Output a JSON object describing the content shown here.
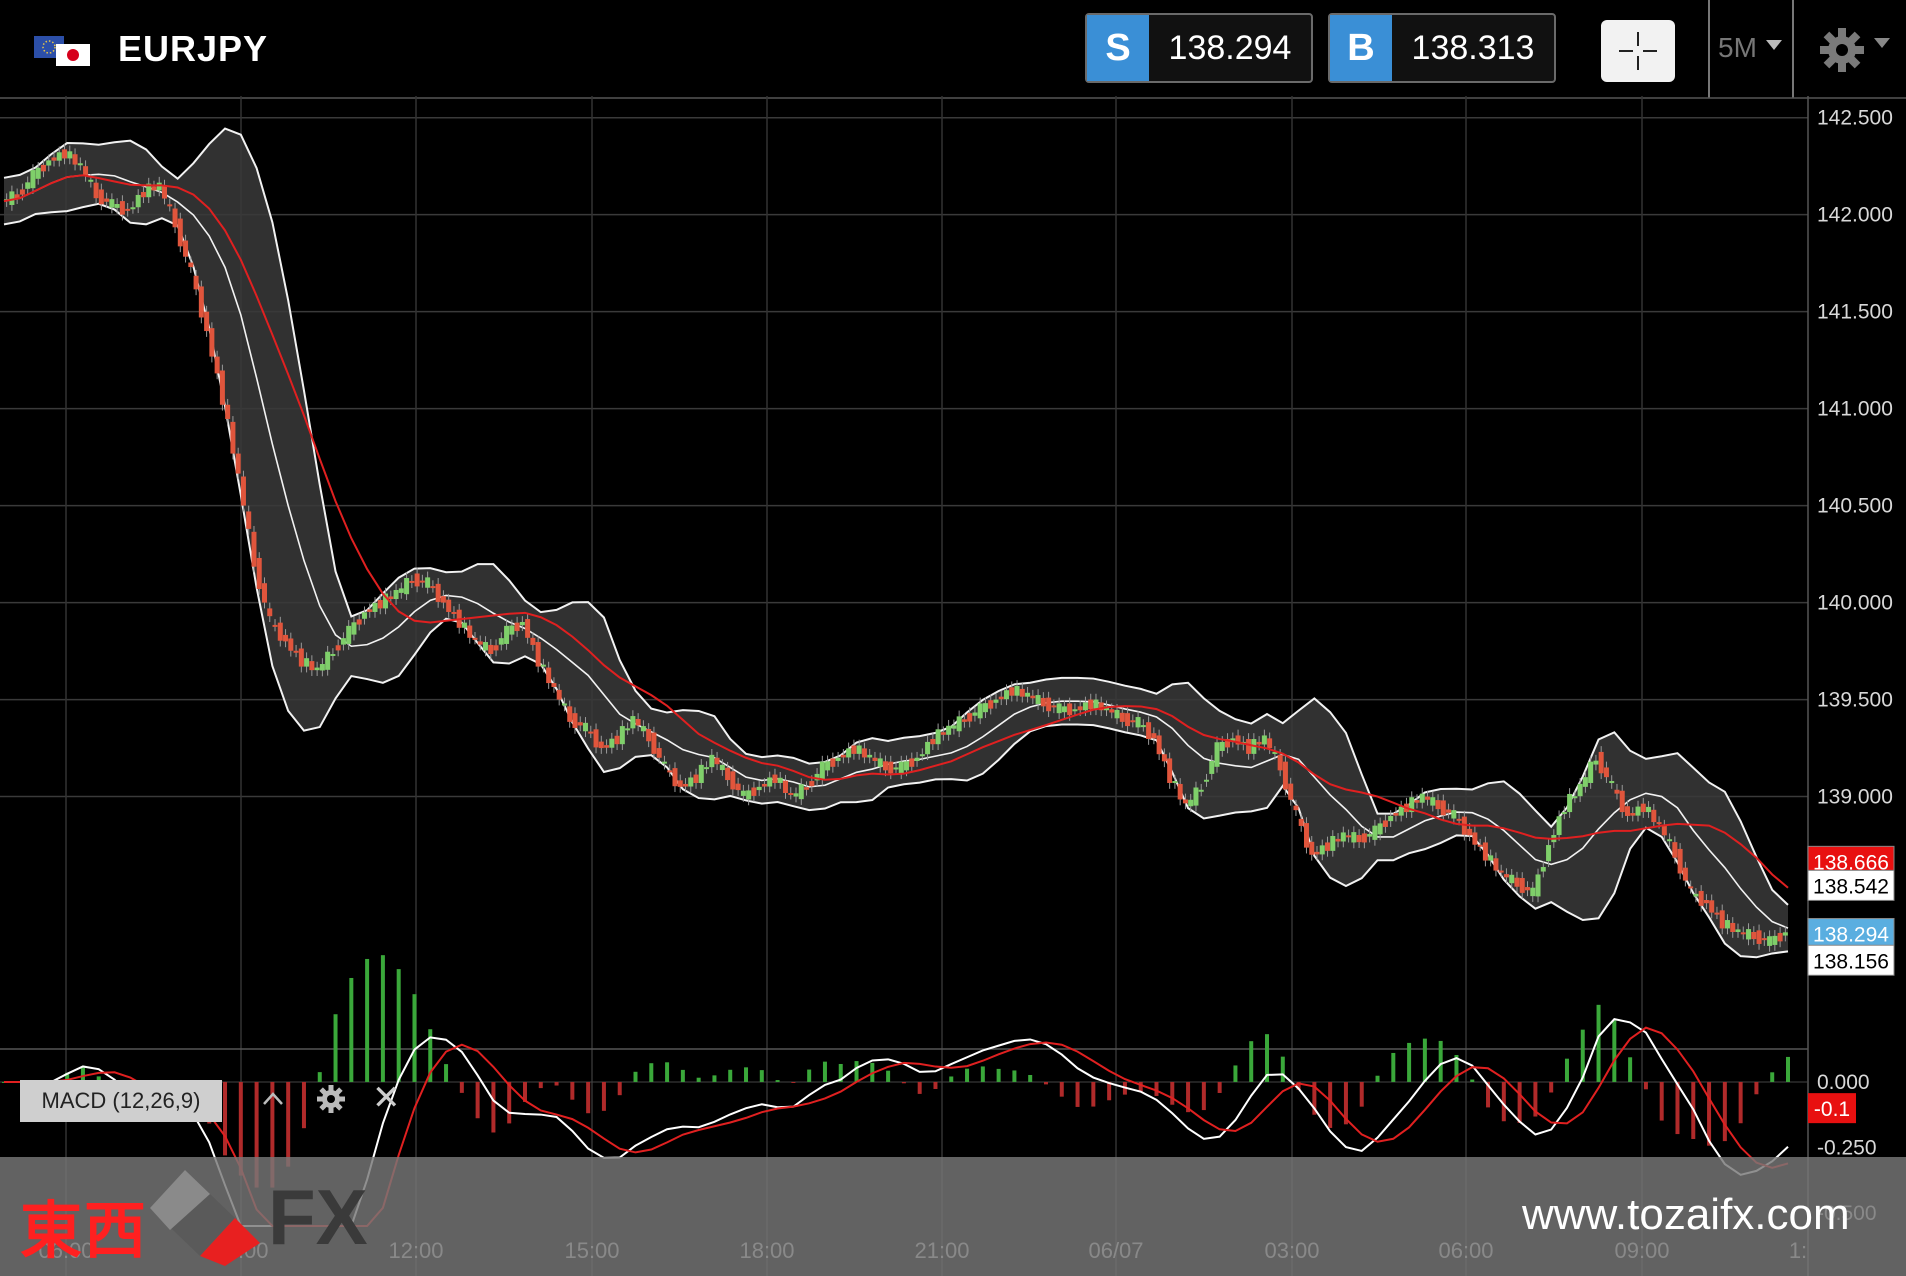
{
  "header": {
    "symbol": "EURJPY",
    "sell": {
      "label": "S",
      "price": "138.294"
    },
    "buy": {
      "label": "B",
      "price": "138.313"
    },
    "timeframe": "5M"
  },
  "chart_data": {
    "type": "candlestick",
    "series": [
      {
        "name": "Price",
        "values": [
          142.07,
          142.1,
          142.2,
          142.28,
          142.32,
          142.25,
          142.1,
          142.05,
          142.02,
          142.12,
          142.15,
          141.95,
          141.7,
          141.4,
          141.05,
          140.65,
          140.2,
          139.9,
          139.8,
          139.7,
          139.65,
          139.75,
          139.85,
          139.95,
          140.0,
          140.05,
          140.12,
          140.1,
          140.0,
          139.9,
          139.8,
          139.75,
          139.85,
          139.9,
          139.7,
          139.55,
          139.4,
          139.35,
          139.25,
          139.3,
          139.4,
          139.3,
          139.15,
          139.05,
          139.1,
          139.2,
          139.1,
          139.0,
          139.05,
          139.1,
          139.0,
          139.05,
          139.15,
          139.2,
          139.25,
          139.2,
          139.15,
          139.15,
          139.2,
          139.3,
          139.35,
          139.4,
          139.45,
          139.5,
          139.55,
          139.52,
          139.48,
          139.45,
          139.45,
          139.48,
          139.45,
          139.4,
          139.38,
          139.3,
          139.1,
          138.95,
          139.05,
          139.25,
          139.3,
          139.25,
          139.3,
          139.15,
          138.9,
          138.7,
          138.75,
          138.8,
          138.78,
          138.82,
          138.9,
          138.95,
          139.0,
          138.95,
          138.9,
          138.8,
          138.7,
          138.6,
          138.55,
          138.5,
          138.75,
          138.95,
          139.05,
          139.2,
          139.05,
          138.9,
          138.95,
          138.85,
          138.7,
          138.5,
          138.45,
          138.35,
          138.3,
          138.28,
          138.25,
          138.3
        ]
      },
      {
        "name": "BB Upper",
        "values": [
          142.18,
          142.25,
          142.35,
          142.42,
          142.46,
          142.45,
          142.4,
          142.44,
          142.45,
          142.46,
          142.46,
          142.3,
          142.05,
          141.75,
          141.4,
          141.0,
          140.6,
          140.25,
          140.08,
          140.08,
          140.1,
          140.12,
          140.15,
          140.2,
          140.22,
          140.27,
          140.26,
          140.15,
          140.05,
          140.0,
          139.95,
          139.7,
          139.55,
          139.52,
          139.4,
          139.3,
          139.22,
          139.22,
          139.25,
          139.28,
          139.32,
          139.38,
          139.42,
          139.48,
          139.55,
          139.52,
          139.5,
          139.5,
          139.5,
          139.55,
          139.58,
          139.52,
          139.45,
          139.3,
          139.25,
          139.35,
          139.45,
          139.52,
          139.4,
          139.25,
          139.0,
          138.95,
          138.98,
          139.05,
          139.05,
          138.95,
          138.85,
          139.0,
          139.25,
          139.35,
          139.22,
          139.2,
          139.3,
          139.3,
          139.15,
          138.95,
          138.78
        ],
        "note": ""
      },
      {
        "name": "SMA",
        "values": []
      }
    ],
    "x_ticks": [
      "06:00",
      "09:00",
      "12:00",
      "15:00",
      "18:00",
      "21:00",
      "06/07",
      "03:00",
      "06:00",
      "09:00",
      "1:"
    ],
    "y_ticks": [
      "142.500",
      "142.000",
      "141.500",
      "141.000",
      "140.500",
      "140.000",
      "139.500",
      "139.000"
    ],
    "ylim": [
      137.75,
      142.55
    ],
    "price_labels": [
      {
        "value": "138.666",
        "color": "#e81010"
      },
      {
        "value": "138.542",
        "color": "#ffffff"
      },
      {
        "value": "138.294",
        "color": "#5aaee0"
      },
      {
        "value": "138.156",
        "color": "#ffffff"
      }
    ],
    "macd": {
      "label": "MACD (12,26,9)",
      "y_ticks": [
        "0.000",
        "-0.250",
        "-0.500"
      ],
      "value_label": "-0.1",
      "ylim": [
        -0.55,
        0.08
      ]
    }
  },
  "footer": {
    "brand_kanji": "東西",
    "brand_fx": "FX",
    "url": "www.tozaifx.com"
  }
}
